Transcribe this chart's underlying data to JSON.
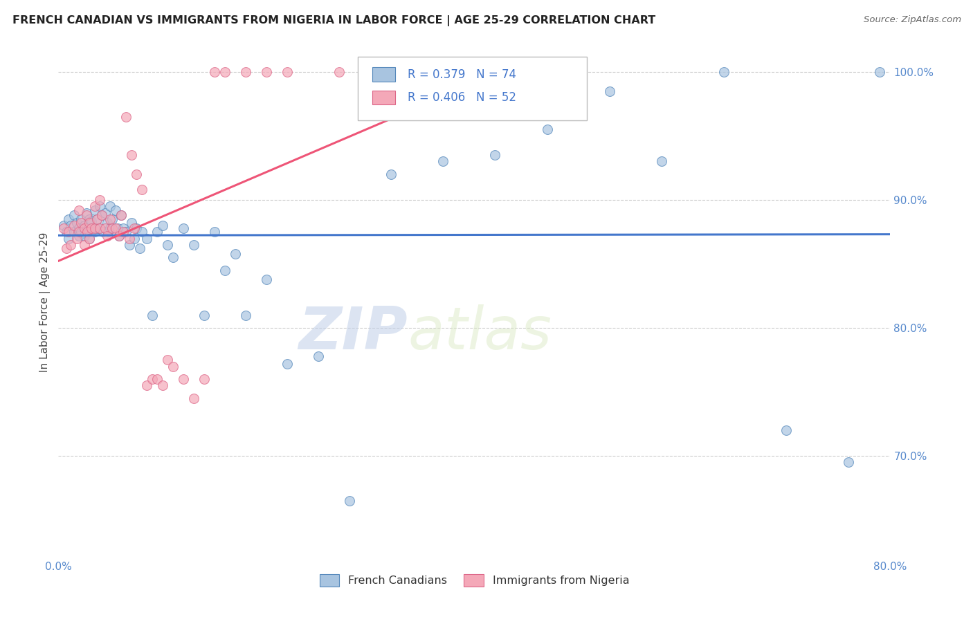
{
  "title": "FRENCH CANADIAN VS IMMIGRANTS FROM NIGERIA IN LABOR FORCE | AGE 25-29 CORRELATION CHART",
  "source": "Source: ZipAtlas.com",
  "ylabel": "In Labor Force | Age 25-29",
  "xlim": [
    0.0,
    0.8
  ],
  "ylim": [
    0.62,
    1.02
  ],
  "x_ticks": [
    0.0,
    0.1,
    0.2,
    0.3,
    0.4,
    0.5,
    0.6,
    0.7,
    0.8
  ],
  "x_tick_labels": [
    "0.0%",
    "",
    "",
    "",
    "",
    "",
    "",
    "",
    "80.0%"
  ],
  "y_ticks": [
    0.7,
    0.8,
    0.9,
    1.0
  ],
  "y_tick_labels": [
    "70.0%",
    "80.0%",
    "90.0%",
    "100.0%"
  ],
  "grid_color": "#cccccc",
  "background_color": "#ffffff",
  "blue_R": 0.379,
  "blue_N": 74,
  "pink_R": 0.406,
  "pink_N": 52,
  "blue_color": "#a8c4e0",
  "pink_color": "#f4a8b8",
  "blue_edge_color": "#5588bb",
  "pink_edge_color": "#dd6688",
  "blue_line_color": "#4477cc",
  "pink_line_color": "#ee5577",
  "tick_color": "#5588cc",
  "legend_label_blue": "French Canadians",
  "legend_label_pink": "Immigrants from Nigeria",
  "watermark_zip": "ZIP",
  "watermark_atlas": "atlas",
  "blue_scatter_x": [
    0.005,
    0.008,
    0.01,
    0.01,
    0.012,
    0.015,
    0.015,
    0.018,
    0.02,
    0.02,
    0.022,
    0.022,
    0.025,
    0.025,
    0.027,
    0.027,
    0.03,
    0.03,
    0.03,
    0.032,
    0.033,
    0.035,
    0.035,
    0.037,
    0.038,
    0.04,
    0.04,
    0.042,
    0.043,
    0.045,
    0.047,
    0.048,
    0.05,
    0.05,
    0.052,
    0.055,
    0.057,
    0.058,
    0.06,
    0.062,
    0.065,
    0.068,
    0.07,
    0.073,
    0.075,
    0.078,
    0.08,
    0.085,
    0.09,
    0.095,
    0.1,
    0.105,
    0.11,
    0.12,
    0.13,
    0.14,
    0.15,
    0.16,
    0.17,
    0.18,
    0.2,
    0.22,
    0.25,
    0.28,
    0.32,
    0.37,
    0.42,
    0.47,
    0.53,
    0.58,
    0.64,
    0.7,
    0.76,
    0.79
  ],
  "blue_scatter_y": [
    0.88,
    0.875,
    0.885,
    0.87,
    0.88,
    0.875,
    0.888,
    0.882,
    0.878,
    0.872,
    0.885,
    0.875,
    0.88,
    0.872,
    0.89,
    0.878,
    0.885,
    0.875,
    0.87,
    0.883,
    0.877,
    0.892,
    0.875,
    0.885,
    0.878,
    0.895,
    0.878,
    0.888,
    0.875,
    0.89,
    0.882,
    0.875,
    0.895,
    0.878,
    0.885,
    0.892,
    0.878,
    0.872,
    0.888,
    0.878,
    0.875,
    0.865,
    0.882,
    0.87,
    0.878,
    0.862,
    0.875,
    0.87,
    0.81,
    0.875,
    0.88,
    0.865,
    0.855,
    0.878,
    0.865,
    0.81,
    0.875,
    0.845,
    0.858,
    0.81,
    0.838,
    0.772,
    0.778,
    0.665,
    0.92,
    0.93,
    0.935,
    0.955,
    0.985,
    0.93,
    1.0,
    0.72,
    0.695,
    1.0
  ],
  "pink_scatter_x": [
    0.005,
    0.008,
    0.01,
    0.012,
    0.015,
    0.018,
    0.02,
    0.02,
    0.022,
    0.025,
    0.025,
    0.027,
    0.028,
    0.03,
    0.03,
    0.032,
    0.035,
    0.035,
    0.037,
    0.04,
    0.04,
    0.042,
    0.045,
    0.047,
    0.05,
    0.052,
    0.055,
    0.058,
    0.06,
    0.062,
    0.065,
    0.068,
    0.07,
    0.073,
    0.075,
    0.08,
    0.085,
    0.09,
    0.095,
    0.1,
    0.105,
    0.11,
    0.12,
    0.13,
    0.14,
    0.15,
    0.16,
    0.18,
    0.2,
    0.22,
    0.27,
    0.35
  ],
  "pink_scatter_y": [
    0.878,
    0.862,
    0.875,
    0.865,
    0.88,
    0.87,
    0.892,
    0.875,
    0.882,
    0.878,
    0.865,
    0.888,
    0.875,
    0.882,
    0.87,
    0.878,
    0.895,
    0.878,
    0.885,
    0.9,
    0.878,
    0.888,
    0.878,
    0.872,
    0.885,
    0.878,
    0.878,
    0.872,
    0.888,
    0.875,
    0.965,
    0.87,
    0.935,
    0.878,
    0.92,
    0.908,
    0.755,
    0.76,
    0.76,
    0.755,
    0.775,
    0.77,
    0.76,
    0.745,
    0.76,
    1.0,
    1.0,
    1.0,
    1.0,
    1.0,
    1.0,
    1.0
  ]
}
